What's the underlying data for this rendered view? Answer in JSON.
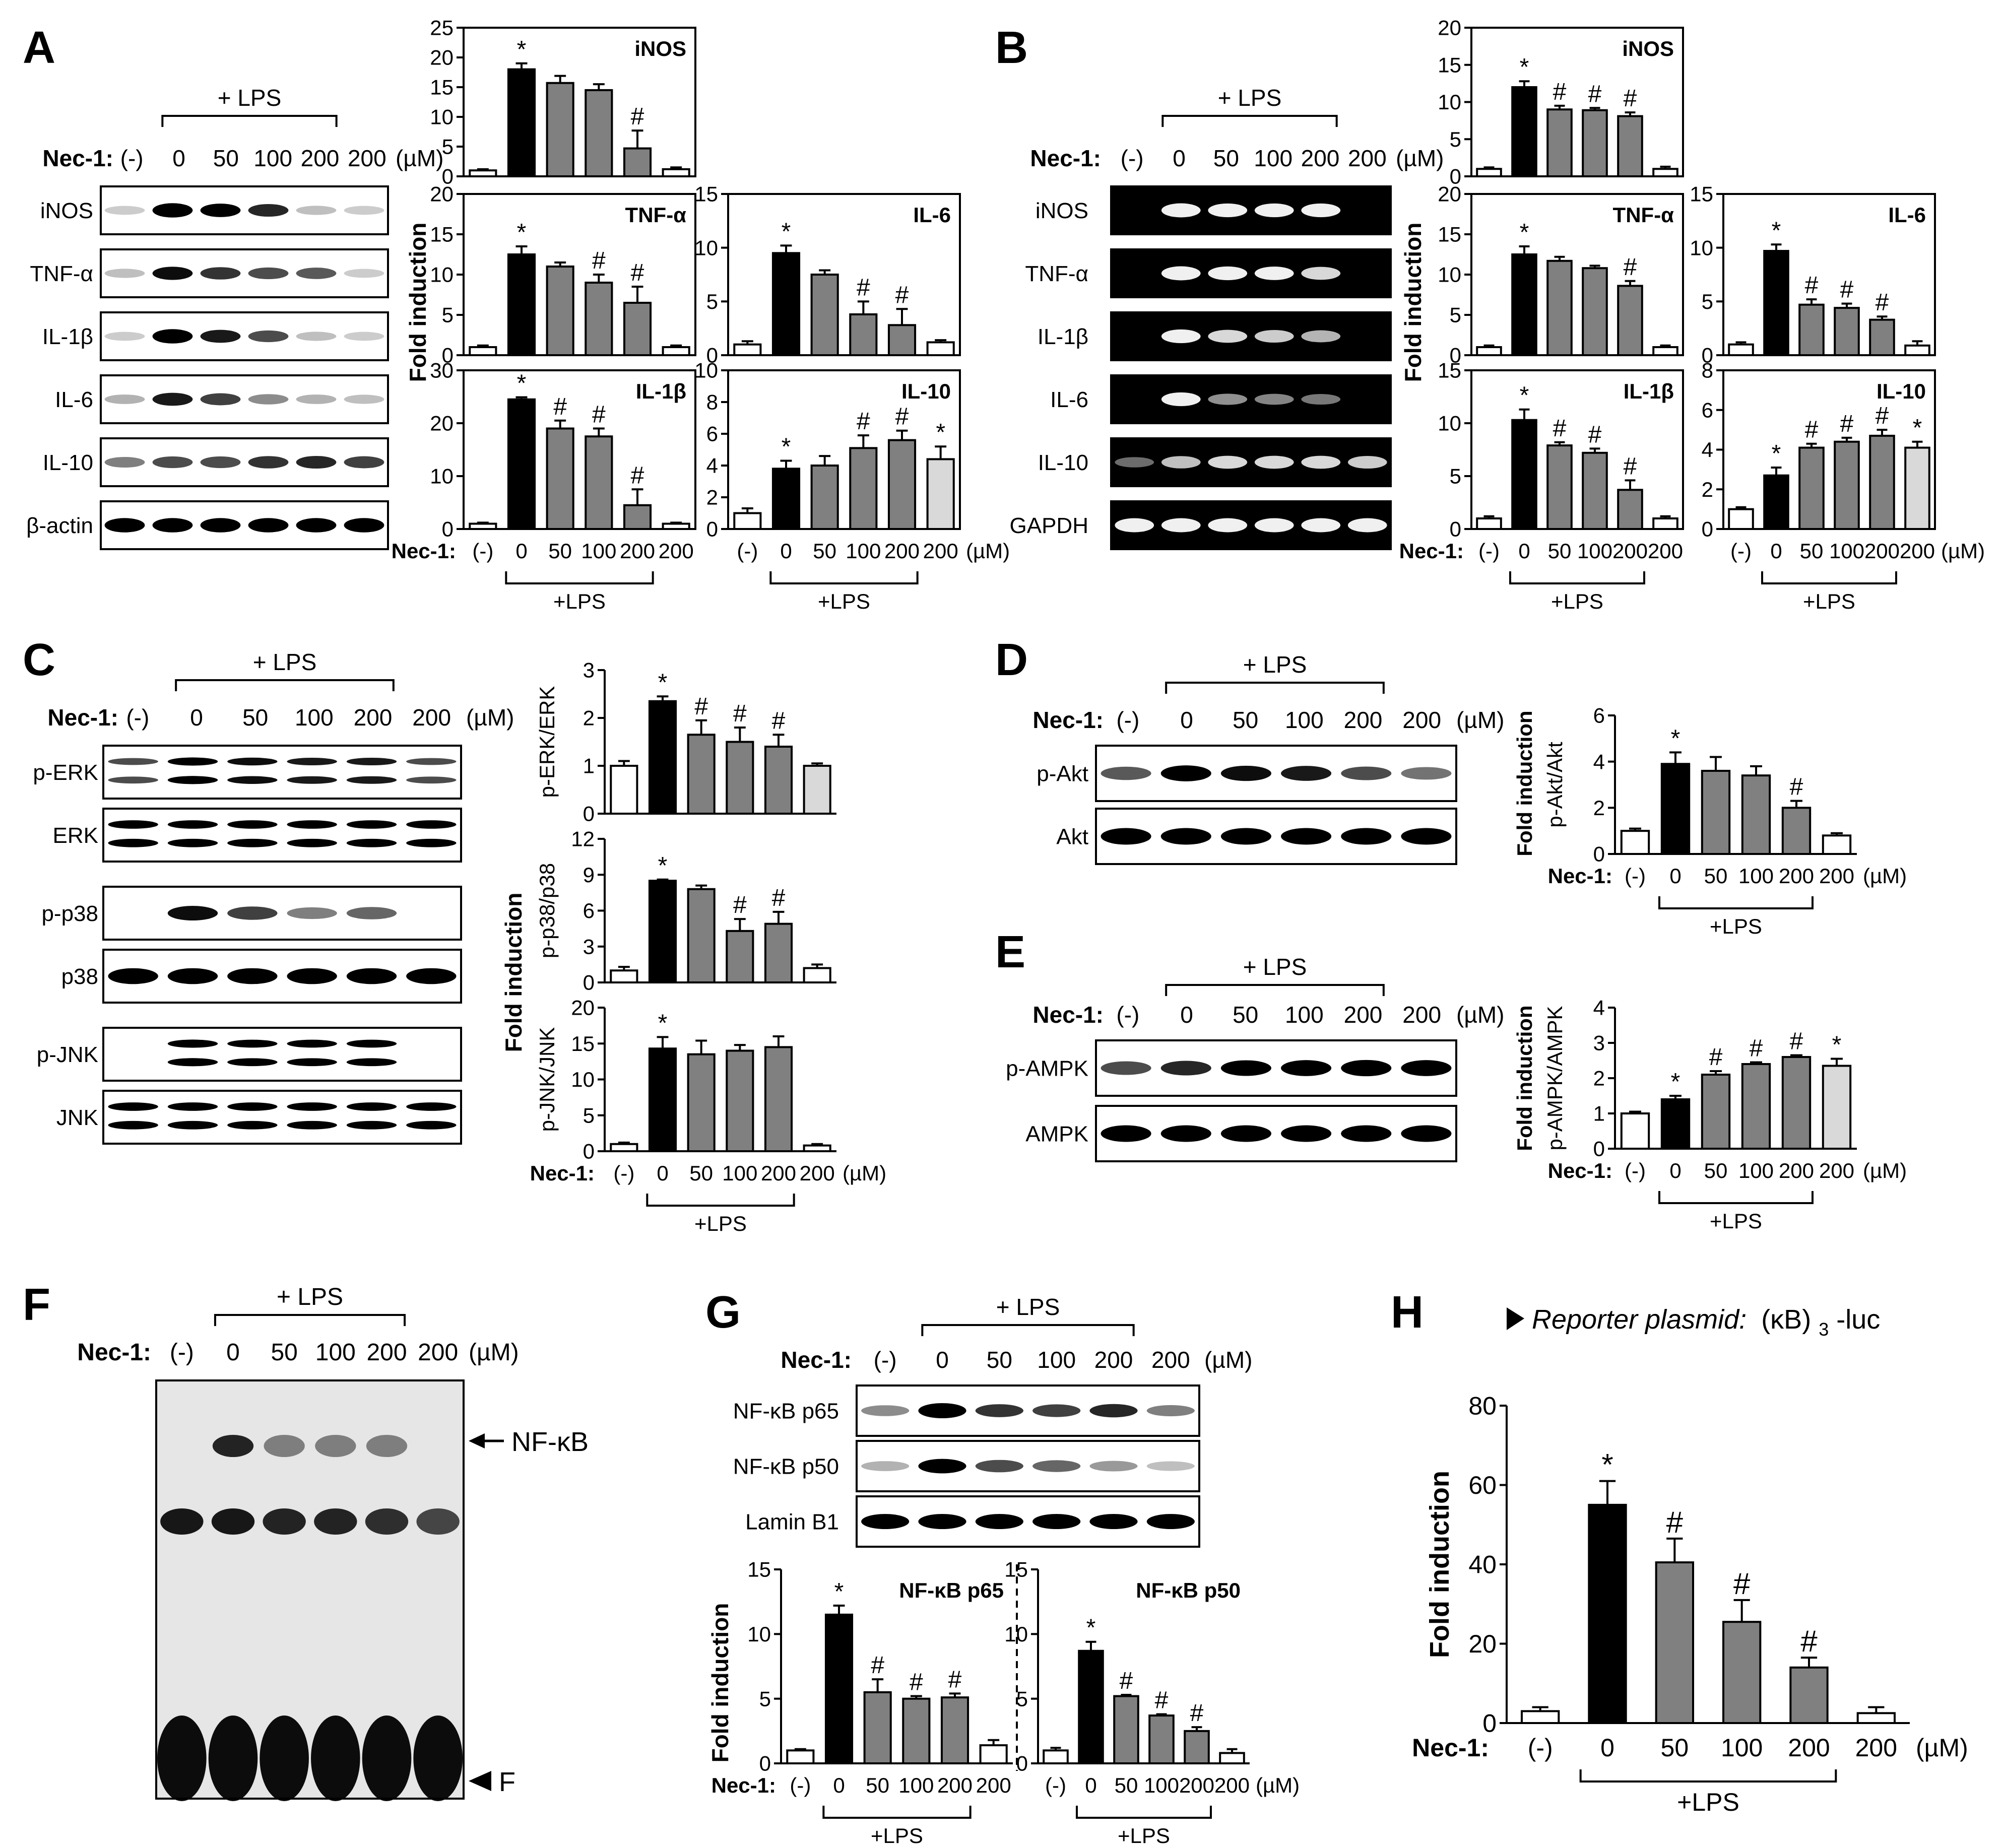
{
  "labels": {
    "nec": "Nec-1:",
    "um": "(µM)",
    "lps_top": "+ LPS",
    "lps_bottom": "+LPS",
    "fold": "Fold induction",
    "sig": "*",
    "hash": "#",
    "neg": "(-)",
    "doses": [
      "0",
      "50",
      "100",
      "200",
      "200"
    ]
  },
  "colors": {
    "ctrl": "#ffffff",
    "lps": "#000000",
    "treated": "#808080",
    "nec_only_solid": "#d9d9d9",
    "gel_bg": "#000000",
    "band_on_black": "#f0f0f0"
  },
  "panels": {
    "A": {
      "letter": "A",
      "blot_rows": [
        "iNOS",
        "TNF-α",
        "IL-1β",
        "IL-6",
        "IL-10",
        "β-actin"
      ],
      "blot_bands": [
        [
          0.05,
          1.0,
          0.85,
          0.7,
          0.1,
          0.05
        ],
        [
          0.1,
          0.8,
          0.65,
          0.55,
          0.5,
          0.05
        ],
        [
          0.05,
          1.0,
          0.75,
          0.55,
          0.1,
          0.05
        ],
        [
          0.15,
          0.75,
          0.6,
          0.3,
          0.15,
          0.1
        ],
        [
          0.35,
          0.55,
          0.55,
          0.65,
          0.7,
          0.6
        ],
        [
          1.0,
          1.0,
          1.0,
          1.0,
          1.0,
          1.0
        ]
      ]
    },
    "B": {
      "letter": "B",
      "blot_rows": [
        "iNOS",
        "TNF-α",
        "IL-1β",
        "IL-6",
        "IL-10",
        "GAPDH"
      ],
      "blot_bands": [
        [
          0.0,
          0.95,
          0.9,
          0.9,
          0.9,
          0.0
        ],
        [
          0.0,
          0.95,
          0.9,
          0.85,
          0.75,
          0.0
        ],
        [
          0.0,
          0.9,
          0.75,
          0.7,
          0.6,
          0.0
        ],
        [
          0.0,
          0.9,
          0.45,
          0.4,
          0.35,
          0.0
        ],
        [
          0.3,
          0.65,
          0.75,
          0.75,
          0.75,
          0.7
        ],
        [
          0.95,
          0.95,
          0.95,
          0.95,
          0.95,
          0.95
        ]
      ]
    },
    "C": {
      "letter": "C",
      "blot_rows": [
        "p-ERK",
        "ERK",
        "p-p38",
        "p38",
        "p-JNK",
        "JNK"
      ],
      "blot_bands": [
        [
          0.55,
          0.9,
          0.8,
          0.75,
          0.75,
          0.55
        ],
        [
          1.0,
          1.0,
          1.0,
          1.0,
          1.0,
          1.0
        ],
        [
          0.0,
          0.8,
          0.6,
          0.35,
          0.45,
          0.0
        ],
        [
          1.0,
          1.0,
          1.0,
          1.0,
          1.0,
          1.0
        ],
        [
          0.0,
          0.9,
          0.85,
          0.85,
          0.85,
          0.0
        ],
        [
          1.0,
          1.0,
          1.0,
          1.0,
          1.0,
          1.0
        ]
      ],
      "double_rows": [
        0,
        1,
        4,
        5
      ]
    },
    "D": {
      "letter": "D",
      "blot_rows": [
        "p-Akt",
        "Akt"
      ],
      "blot_bands": [
        [
          0.5,
          0.9,
          0.8,
          0.75,
          0.55,
          0.4
        ],
        [
          1.0,
          1.0,
          1.0,
          1.0,
          1.0,
          1.0
        ]
      ]
    },
    "E": {
      "letter": "E",
      "blot_rows": [
        "p-AMPK",
        "AMPK"
      ],
      "blot_bands": [
        [
          0.55,
          0.7,
          0.85,
          0.9,
          0.95,
          0.9
        ],
        [
          1.0,
          1.0,
          1.0,
          1.0,
          1.0,
          1.0
        ]
      ]
    },
    "F": {
      "letter": "F",
      "nfkb_label": "NF-κB",
      "free_label": "F",
      "nfkb_band": [
        0.05,
        0.85,
        0.45,
        0.45,
        0.45,
        0.05
      ],
      "mid_band": [
        0.9,
        0.9,
        0.85,
        0.85,
        0.8,
        0.7
      ]
    },
    "G": {
      "letter": "G",
      "blot_rows": [
        "NF-κB p65",
        "NF-κB p50",
        "Lamin B1"
      ],
      "blot_bands": [
        [
          0.3,
          1.0,
          0.65,
          0.6,
          0.7,
          0.35
        ],
        [
          0.15,
          0.9,
          0.55,
          0.45,
          0.25,
          0.1
        ],
        [
          1.0,
          1.0,
          1.0,
          1.0,
          1.0,
          1.0
        ]
      ]
    },
    "H": {
      "letter": "H",
      "subtitle_italic": "Reporter plasmid:",
      "subtitle_plain": "(κB)",
      "subtitle_sub": "3",
      "subtitle_end": "-luc"
    }
  },
  "chart_data": [
    {
      "id": "A-iNOS",
      "type": "bar",
      "title": "iNOS",
      "categories": [
        "(-)",
        "0",
        "50",
        "100",
        "200",
        "200"
      ],
      "values": [
        1,
        18,
        15.7,
        14.5,
        4.7,
        1.2
      ],
      "errors": [
        0.2,
        1.0,
        1.2,
        1.0,
        3.0,
        0.3
      ],
      "marks": [
        "",
        "*",
        "",
        "",
        "#",
        ""
      ],
      "ylim": [
        0,
        25
      ],
      "yticks": [
        0,
        5,
        10,
        15,
        20,
        25
      ]
    },
    {
      "id": "A-TNF-α",
      "type": "bar",
      "title": "TNF-α",
      "categories": [
        "(-)",
        "0",
        "50",
        "100",
        "200",
        "200"
      ],
      "values": [
        1,
        12.5,
        11,
        9,
        6.5,
        1
      ],
      "errors": [
        0.2,
        1.0,
        0.5,
        1.0,
        2.0,
        0.2
      ],
      "marks": [
        "",
        "*",
        "",
        "#",
        "#",
        ""
      ],
      "ylim": [
        0,
        20
      ],
      "yticks": [
        0,
        5,
        10,
        15,
        20
      ]
    },
    {
      "id": "A-IL-6",
      "type": "bar",
      "title": "IL-6",
      "categories": [
        "(-)",
        "0",
        "50",
        "100",
        "200",
        "200"
      ],
      "values": [
        1,
        9.5,
        7.5,
        3.8,
        2.8,
        1.2
      ],
      "errors": [
        0.3,
        0.7,
        0.4,
        1.2,
        1.5,
        0.2
      ],
      "marks": [
        "",
        "*",
        "",
        "#",
        "#",
        ""
      ],
      "ylim": [
        0,
        15
      ],
      "yticks": [
        0,
        5,
        10,
        15
      ]
    },
    {
      "id": "A-IL-1β",
      "type": "bar",
      "title": "IL-1β",
      "categories": [
        "(-)",
        "0",
        "50",
        "100",
        "200",
        "200"
      ],
      "values": [
        1,
        24.5,
        19,
        17.5,
        4.5,
        1
      ],
      "errors": [
        0.2,
        0.4,
        1.5,
        1.5,
        3.0,
        0.2
      ],
      "marks": [
        "",
        "*",
        "#",
        "#",
        "#",
        ""
      ],
      "ylim": [
        0,
        30
      ],
      "yticks": [
        0,
        10,
        20,
        30
      ]
    },
    {
      "id": "A-IL-10",
      "type": "bar",
      "title": "IL-10",
      "categories": [
        "(-)",
        "0",
        "50",
        "100",
        "200",
        "200"
      ],
      "values": [
        1,
        3.8,
        4,
        5.1,
        5.6,
        4.4
      ],
      "errors": [
        0.3,
        0.5,
        0.6,
        0.8,
        0.6,
        0.8
      ],
      "marks": [
        "",
        "*",
        "",
        "#",
        "#",
        "*"
      ],
      "ylim": [
        0,
        10
      ],
      "yticks": [
        0,
        2,
        4,
        6,
        8,
        10
      ]
    },
    {
      "id": "B-iNOS",
      "type": "bar",
      "title": "iNOS",
      "categories": [
        "(-)",
        "0",
        "50",
        "100",
        "200",
        "200"
      ],
      "values": [
        1,
        12,
        9,
        8.9,
        8.1,
        1
      ],
      "errors": [
        0.2,
        0.8,
        0.5,
        0.3,
        0.5,
        0.3
      ],
      "marks": [
        "",
        "*",
        "#",
        "#",
        "#",
        ""
      ],
      "ylim": [
        0,
        20
      ],
      "yticks": [
        0,
        5,
        10,
        15,
        20
      ]
    },
    {
      "id": "B-TNF-α",
      "type": "bar",
      "title": "TNF-α",
      "categories": [
        "(-)",
        "0",
        "50",
        "100",
        "200",
        "200"
      ],
      "values": [
        1,
        12.5,
        11.7,
        10.8,
        8.6,
        1
      ],
      "errors": [
        0.2,
        1.0,
        0.5,
        0.3,
        0.6,
        0.2
      ],
      "marks": [
        "",
        "*",
        "",
        "",
        "#",
        ""
      ],
      "ylim": [
        0,
        20
      ],
      "yticks": [
        0,
        5,
        10,
        15,
        20
      ]
    },
    {
      "id": "B-IL-6",
      "type": "bar",
      "title": "IL-6",
      "categories": [
        "(-)",
        "0",
        "50",
        "100",
        "200",
        "200"
      ],
      "values": [
        1,
        9.7,
        4.7,
        4.4,
        3.3,
        0.9
      ],
      "errors": [
        0.2,
        0.6,
        0.5,
        0.4,
        0.3,
        0.4
      ],
      "marks": [
        "",
        "*",
        "#",
        "#",
        "#",
        ""
      ],
      "ylim": [
        0,
        15
      ],
      "yticks": [
        0,
        5,
        10,
        15
      ]
    },
    {
      "id": "B-IL-1β",
      "type": "bar",
      "title": "IL-1β",
      "categories": [
        "(-)",
        "0",
        "50",
        "100",
        "200",
        "200"
      ],
      "values": [
        1,
        10.3,
        7.9,
        7.2,
        3.7,
        1
      ],
      "errors": [
        0.2,
        1.0,
        0.3,
        0.4,
        0.9,
        0.2
      ],
      "marks": [
        "",
        "*",
        "#",
        "#",
        "#",
        ""
      ],
      "ylim": [
        0,
        15
      ],
      "yticks": [
        0,
        5,
        10,
        15
      ]
    },
    {
      "id": "B-IL-10",
      "type": "bar",
      "title": "IL-10",
      "categories": [
        "(-)",
        "0",
        "50",
        "100",
        "200",
        "200"
      ],
      "values": [
        1,
        2.7,
        4.1,
        4.4,
        4.7,
        4.1
      ],
      "errors": [
        0.1,
        0.4,
        0.2,
        0.2,
        0.3,
        0.3
      ],
      "marks": [
        "",
        "*",
        "#",
        "#",
        "#",
        "*"
      ],
      "ylim": [
        0,
        8
      ],
      "yticks": [
        0,
        2,
        4,
        6,
        8
      ]
    },
    {
      "id": "C-p-ERK/ERK",
      "type": "bar",
      "title": "",
      "ylabel": "p-ERK/ERK",
      "categories": [
        "(-)",
        "0",
        "50",
        "100",
        "200",
        "200"
      ],
      "values": [
        1,
        2.35,
        1.65,
        1.5,
        1.4,
        1
      ],
      "errors": [
        0.1,
        0.1,
        0.3,
        0.3,
        0.25,
        0.05
      ],
      "marks": [
        "",
        "*",
        "#",
        "#",
        "#",
        ""
      ],
      "ylim": [
        0,
        3
      ],
      "yticks": [
        0,
        1,
        2,
        3
      ]
    },
    {
      "id": "C-p-p38/p38",
      "type": "bar",
      "title": "",
      "ylabel": "p-p38/p38",
      "categories": [
        "(-)",
        "0",
        "50",
        "100",
        "200",
        "200"
      ],
      "values": [
        1,
        8.5,
        7.8,
        4.3,
        4.9,
        1.2
      ],
      "errors": [
        0.3,
        0.1,
        0.3,
        1.0,
        1.0,
        0.3
      ],
      "marks": [
        "",
        "*",
        "",
        "#",
        "#",
        ""
      ],
      "ylim": [
        0,
        12
      ],
      "yticks": [
        0,
        3,
        6,
        9,
        12
      ]
    },
    {
      "id": "C-p-JNK/JNK",
      "type": "bar",
      "title": "",
      "ylabel": "p-JNK/JNK",
      "categories": [
        "(-)",
        "0",
        "50",
        "100",
        "200",
        "200"
      ],
      "values": [
        1,
        14.3,
        13.5,
        14,
        14.5,
        0.8
      ],
      "errors": [
        0.2,
        1.6,
        1.9,
        0.8,
        1.5,
        0.2
      ],
      "marks": [
        "",
        "*",
        "",
        "",
        "",
        ""
      ],
      "ylim": [
        0,
        20
      ],
      "yticks": [
        0,
        5,
        10,
        15,
        20
      ]
    },
    {
      "id": "D-p-Akt/Akt",
      "type": "bar",
      "title": "",
      "ylabel": "p-Akt/Akt",
      "categories": [
        "(-)",
        "0",
        "50",
        "100",
        "200",
        "200"
      ],
      "values": [
        1,
        3.9,
        3.6,
        3.4,
        2,
        0.8
      ],
      "errors": [
        0.1,
        0.5,
        0.6,
        0.4,
        0.3,
        0.1
      ],
      "marks": [
        "",
        "*",
        "",
        "",
        "#",
        ""
      ],
      "ylim": [
        0,
        6
      ],
      "yticks": [
        0,
        2,
        4,
        6
      ]
    },
    {
      "id": "E-p-AMPK/AMPK",
      "type": "bar",
      "title": "",
      "ylabel": "p-AMPK/AMPK",
      "categories": [
        "(-)",
        "0",
        "50",
        "100",
        "200",
        "200"
      ],
      "values": [
        1,
        1.4,
        2.1,
        2.4,
        2.6,
        2.35
      ],
      "errors": [
        0.05,
        0.1,
        0.1,
        0.05,
        0.05,
        0.2
      ],
      "marks": [
        "",
        "*",
        "#",
        "#",
        "#",
        "*"
      ],
      "ylim": [
        0,
        4
      ],
      "yticks": [
        0,
        1,
        2,
        3,
        4
      ]
    },
    {
      "id": "G-NF-κB p65",
      "type": "bar",
      "title": "NF-κB p65",
      "categories": [
        "(-)",
        "0",
        "50",
        "100",
        "200",
        "200"
      ],
      "values": [
        1,
        11.5,
        5.5,
        5,
        5.1,
        1.4
      ],
      "errors": [
        0.1,
        0.7,
        1.0,
        0.2,
        0.3,
        0.4
      ],
      "marks": [
        "",
        "*",
        "#",
        "#",
        "#",
        ""
      ],
      "ylim": [
        0,
        15
      ],
      "yticks": [
        0,
        5,
        10,
        15
      ]
    },
    {
      "id": "G-NF-κB p50",
      "type": "bar",
      "title": "NF-κB p50",
      "categories": [
        "(-)",
        "0",
        "50",
        "100",
        "200",
        "200"
      ],
      "values": [
        1,
        8.7,
        5.2,
        3.7,
        2.5,
        0.8
      ],
      "errors": [
        0.2,
        0.7,
        0.1,
        0.1,
        0.3,
        0.3
      ],
      "marks": [
        "",
        "*",
        "#",
        "#",
        "#",
        ""
      ],
      "ylim": [
        0,
        15
      ],
      "yticks": [
        0,
        5,
        10,
        15
      ]
    },
    {
      "id": "H-luc",
      "type": "bar",
      "title": "",
      "ylabel": "Fold induction",
      "categories": [
        "(-)",
        "0",
        "50",
        "100",
        "200",
        "200"
      ],
      "values": [
        3,
        55,
        40.5,
        25.5,
        14,
        2.5
      ],
      "errors": [
        1,
        6,
        6,
        5.5,
        2.5,
        1.5
      ],
      "marks": [
        "",
        "*",
        "#",
        "#",
        "#",
        ""
      ],
      "ylim": [
        0,
        80
      ],
      "yticks": [
        0,
        20,
        40,
        60,
        80
      ]
    }
  ]
}
